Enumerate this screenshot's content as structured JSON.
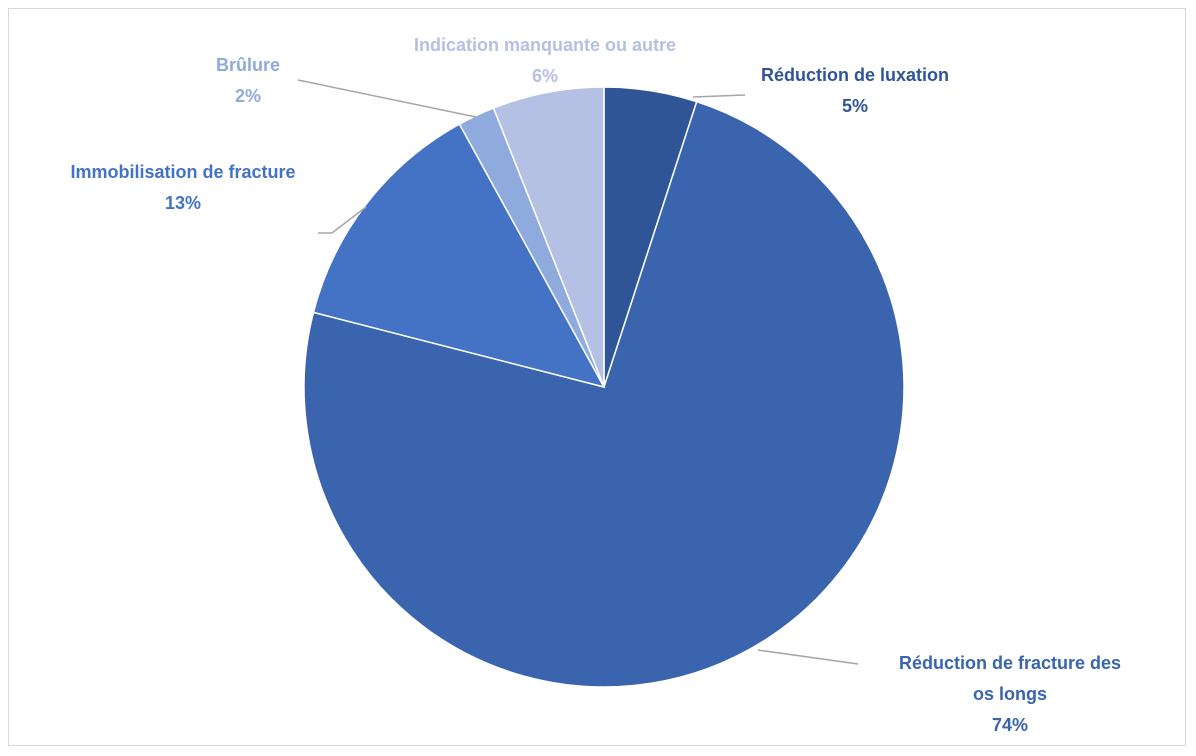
{
  "chart_data": {
    "type": "pie",
    "categories": [
      "Réduction de luxation",
      "Réduction de fracture des os longs",
      "Immobilisation de fracture",
      "Brûlure",
      "Indication manquante ou autre"
    ],
    "values": [
      5,
      74,
      13,
      2,
      6
    ],
    "value_labels": [
      "5%",
      "74%",
      "13%",
      "2%",
      "6%"
    ],
    "colors": [
      "#2f5597",
      "#3a64ad",
      "#4472c4",
      "#8faadc",
      "#b4c0e4"
    ]
  }
}
